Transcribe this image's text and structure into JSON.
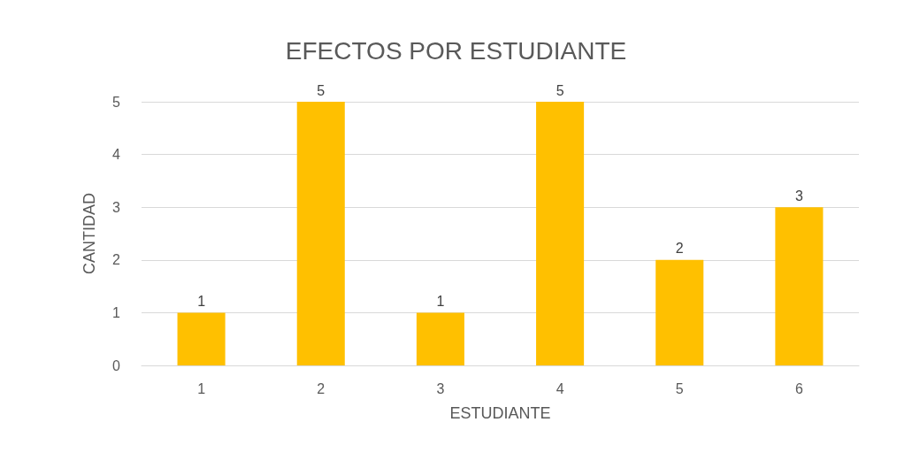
{
  "chart_data": {
    "type": "bar",
    "title": "EFECTOS POR ESTUDIANTE",
    "xlabel": "ESTUDIANTE",
    "ylabel": "CANTIDAD",
    "categories": [
      "1",
      "2",
      "3",
      "4",
      "5",
      "6"
    ],
    "values": [
      1,
      5,
      1,
      5,
      2,
      3
    ],
    "color": "#ffc000",
    "ylim": [
      0,
      5
    ],
    "yticks": [
      0,
      1,
      2,
      3,
      4,
      5
    ],
    "grid": "y",
    "data_labels": true
  }
}
